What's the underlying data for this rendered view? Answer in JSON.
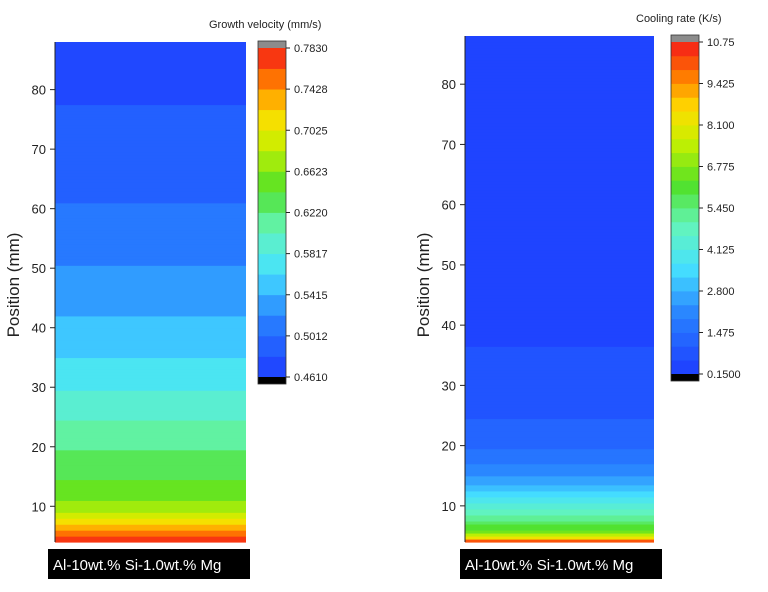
{
  "chart_data": [
    {
      "type": "heatmap",
      "ylabel": "Position (mm)",
      "ylim": [
        4,
        88
      ],
      "yticks": [
        10,
        20,
        30,
        40,
        50,
        60,
        70,
        80
      ],
      "grid": false,
      "colorbar": {
        "title": "Growth velocity (mm/s)",
        "min": 0.461,
        "max": 0.783,
        "ticks": [
          "0.7830",
          "0.7428",
          "0.7025",
          "0.6623",
          "0.6220",
          "0.5817",
          "0.5415",
          "0.5012",
          "0.4610"
        ],
        "levels": 16
      },
      "profile": {
        "position_mm": [
          4,
          6,
          8,
          10,
          15,
          20,
          25,
          30,
          35,
          40,
          45,
          50,
          55,
          60,
          65,
          70,
          75,
          80,
          88
        ],
        "value": [
          0.778,
          0.745,
          0.702,
          0.667,
          0.64,
          0.62,
          0.6,
          0.58,
          0.562,
          0.548,
          0.532,
          0.522,
          0.512,
          0.503,
          0.496,
          0.49,
          0.484,
          0.478,
          0.47
        ]
      },
      "caption": "Al-10wt.% Si-1.0wt.% Mg"
    },
    {
      "type": "heatmap",
      "ylabel": "Position (mm)",
      "ylim": [
        4,
        88
      ],
      "yticks": [
        10,
        20,
        30,
        40,
        50,
        60,
        70,
        80
      ],
      "grid": false,
      "colorbar": {
        "title": "Cooling rate (K/s)",
        "min": 0.15,
        "max": 10.75,
        "ticks": [
          "10.75",
          "9.425",
          "8.100",
          "6.775",
          "5.450",
          "4.125",
          "2.800",
          "1.475",
          "0.1500"
        ],
        "levels": 24
      },
      "profile": {
        "position_mm": [
          4,
          5,
          6,
          8,
          10,
          12,
          14,
          16,
          18,
          20,
          24,
          28,
          34,
          40,
          50,
          60,
          70,
          88
        ],
        "value": [
          10.6,
          7.8,
          6.3,
          5.3,
          4.3,
          3.4,
          2.7,
          2.1,
          1.7,
          1.35,
          1.05,
          0.85,
          0.65,
          0.5,
          0.4,
          0.32,
          0.25,
          0.18
        ]
      },
      "caption": "Al-10wt.% Si-1.0wt.% Mg"
    }
  ]
}
